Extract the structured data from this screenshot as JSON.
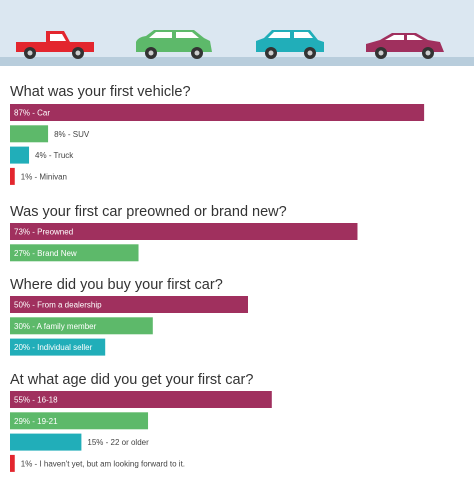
{
  "chart_data": [
    {
      "type": "bar",
      "orientation": "horizontal",
      "title": "What was your first vehicle?",
      "categories": [
        "Car",
        "SUV",
        "Truck",
        "Minivan"
      ],
      "values": [
        87,
        8,
        4,
        1
      ],
      "labels": [
        "87% - Car",
        "8% - SUV",
        "4% - Truck",
        "1% - Minivan"
      ],
      "colors": [
        "#a0305e",
        "#5db96a",
        "#21aeb9",
        "#e3262e"
      ],
      "xlim": [
        0,
        100
      ]
    },
    {
      "type": "bar",
      "orientation": "horizontal",
      "title": "Was your first car preowned or brand new?",
      "categories": [
        "Preowned",
        "Brand New"
      ],
      "values": [
        73,
        27
      ],
      "labels": [
        "73% - Preowned",
        "27% - Brand New"
      ],
      "colors": [
        "#a0305e",
        "#5db96a"
      ],
      "xlim": [
        0,
        100
      ]
    },
    {
      "type": "bar",
      "orientation": "horizontal",
      "title": "Where did you buy your first car?",
      "categories": [
        "From a dealership",
        "A family member",
        "Individual seller"
      ],
      "values": [
        50,
        30,
        20
      ],
      "labels": [
        "50% - From a dealership",
        "30% - A family member",
        "20% - Individual seller"
      ],
      "colors": [
        "#a0305e",
        "#5db96a",
        "#21aeb9"
      ],
      "xlim": [
        0,
        100
      ]
    },
    {
      "type": "bar",
      "orientation": "horizontal",
      "title": "At what age did you get your first car?",
      "categories": [
        "16-18",
        "19-21",
        "22 or older",
        "I haven't yet, but am looking forward to it."
      ],
      "values": [
        55,
        29,
        15,
        1
      ],
      "labels": [
        "55% - 16-18",
        "29% - 19-21",
        "15% - 22 or older",
        "1% - I haven't yet, but am looking forward to it."
      ],
      "colors": [
        "#a0305e",
        "#5db96a",
        "#21aeb9",
        "#e3262e"
      ],
      "xlim": [
        0,
        100
      ]
    }
  ],
  "banner": {
    "colors": {
      "sky": "#dbe7f1",
      "road": "#b8cddc",
      "truck": "#e3262e",
      "suv": "#5db96a",
      "wagon": "#21aeb9",
      "sedan": "#a0305e"
    },
    "icons": [
      "pickup-truck-icon",
      "suv-icon",
      "wagon-icon",
      "sedan-icon"
    ]
  }
}
